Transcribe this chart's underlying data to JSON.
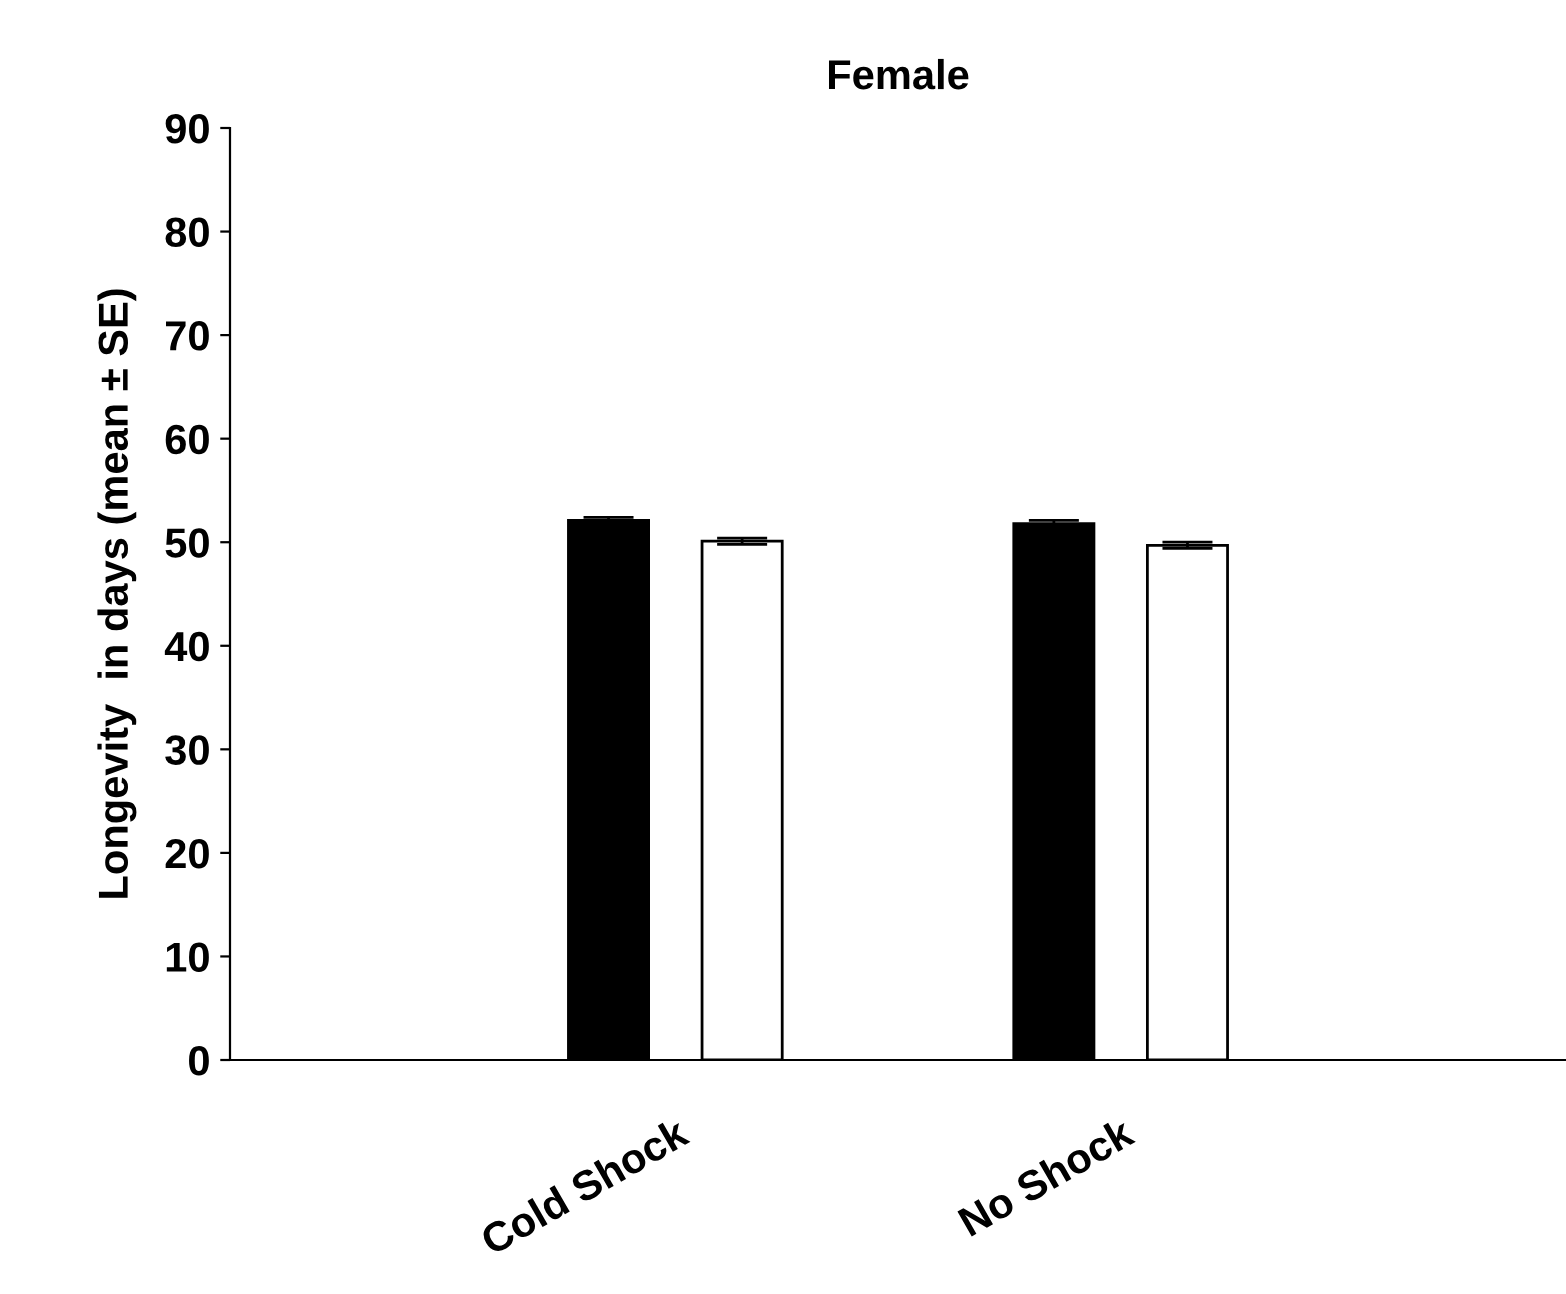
{
  "chart_data": {
    "type": "bar",
    "title": "Female",
    "ylabel": "Longevity  in days (mean ± SE)",
    "categories": [
      "Cold Shock",
      "No Shock"
    ],
    "series": [
      {
        "color": "#000000",
        "values": [
          52.1,
          51.8
        ],
        "errors": [
          0.3,
          0.3
        ]
      },
      {
        "color": "#ffffff",
        "values": [
          50.1,
          49.7
        ],
        "errors": [
          0.3,
          0.3
        ]
      }
    ],
    "ylim": [
      0,
      90
    ],
    "yticks": [
      0,
      10,
      20,
      30,
      40,
      50,
      60,
      70,
      80,
      90
    ],
    "grid": false,
    "legend": false
  }
}
